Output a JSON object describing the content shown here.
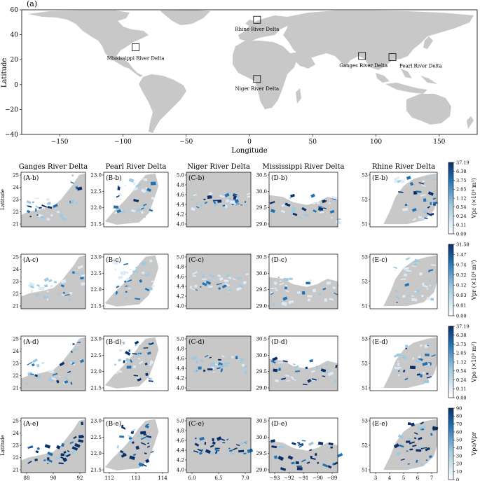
{
  "world": {
    "panel_label": "(a)",
    "xlabel": "Longitude",
    "ylabel": "Latitude",
    "x_ticks": [
      "−150",
      "−100",
      "−50",
      "0",
      "50",
      "100",
      "150"
    ],
    "x_tick_values": [
      -150,
      -100,
      -50,
      0,
      50,
      100,
      150
    ],
    "y_ticks": [
      "−40",
      "−20",
      "0",
      "20",
      "40",
      "60"
    ],
    "y_tick_values": [
      -40,
      -20,
      0,
      20,
      40,
      60
    ],
    "x_range": [
      -180,
      180
    ],
    "y_range": [
      -40,
      60
    ],
    "land_color": "#c8c8c8",
    "deltas": [
      {
        "name": "Rhine River Delta",
        "lon": 6,
        "lat": 52
      },
      {
        "name": "Mississippi River Delta",
        "lon": -90,
        "lat": 30
      },
      {
        "name": "Ganges River Delta",
        "lon": 89,
        "lat": 23
      },
      {
        "name": "Pearl River Delta",
        "lon": 113,
        "lat": 22
      },
      {
        "name": "Niger River Delta",
        "lon": 6,
        "lat": 4.5
      }
    ]
  },
  "columns": [
    {
      "id": "A",
      "title": "Ganges River Delta",
      "x_ticks": [
        "88",
        "90",
        "92"
      ],
      "y_ticks": [
        "21",
        "22",
        "23",
        "24",
        "25"
      ]
    },
    {
      "id": "B",
      "title": "Pearl River Delta",
      "x_ticks": [
        "112",
        "113",
        "114"
      ],
      "y_ticks": [
        "21.5",
        "22.0",
        "22.5",
        "23.0"
      ]
    },
    {
      "id": "C",
      "title": "Niger River Delta",
      "x_ticks": [
        "6.0",
        "6.5",
        "7.0"
      ],
      "y_ticks": [
        "4.0",
        "4.2",
        "4.4",
        "4.6",
        "4.8",
        "5.0"
      ]
    },
    {
      "id": "D",
      "title": "Mississippi River Delta",
      "x_ticks": [
        "−93",
        "−92",
        "−91",
        "−90",
        "−89"
      ],
      "y_ticks": [
        "29.0",
        "29.5",
        "30.0",
        "30.5"
      ]
    },
    {
      "id": "E",
      "title": "Rhine River Delta",
      "x_ticks": [
        "3",
        "4",
        "5",
        "6",
        "7"
      ],
      "y_ticks": [
        "51",
        "52",
        "53"
      ]
    }
  ],
  "rows": [
    {
      "suffix": "b",
      "colorbar_label": "Vpc (×10⁴ m³)",
      "colorbar_ticks": [
        "37.19",
        "6.38",
        "3.75",
        "2.05",
        "1.12",
        "0.54",
        "0.24",
        "0.11",
        "0.00"
      ]
    },
    {
      "suffix": "c",
      "colorbar_label": "Vpr (×10⁴ m³)",
      "colorbar_ticks": [
        "31.58",
        "1.47",
        "0.74",
        "0.32",
        "0.12",
        "0.03",
        "0.01",
        "0.00"
      ]
    },
    {
      "suffix": "d",
      "colorbar_label": "Vpo (×10⁴ m³)",
      "colorbar_ticks": [
        "37.19",
        "6.38",
        "3.75",
        "2.05",
        "1.12",
        "0.54",
        "0.24",
        "0.11",
        "0.00"
      ]
    },
    {
      "suffix": "e",
      "colorbar_label": "Vpo/Vpr",
      "colorbar_ticks": [
        "90",
        "80",
        "70",
        "60",
        "50",
        "40",
        "30",
        "20",
        "10",
        "0"
      ]
    }
  ],
  "shared_xlabel": "Longitude",
  "shared_ylabel": "Latitude",
  "colors": {
    "deep": "#08306b",
    "mid": "#2171b5",
    "light": "#9ecae1",
    "pale": "#deebf7",
    "land": "#c8c8c8"
  }
}
